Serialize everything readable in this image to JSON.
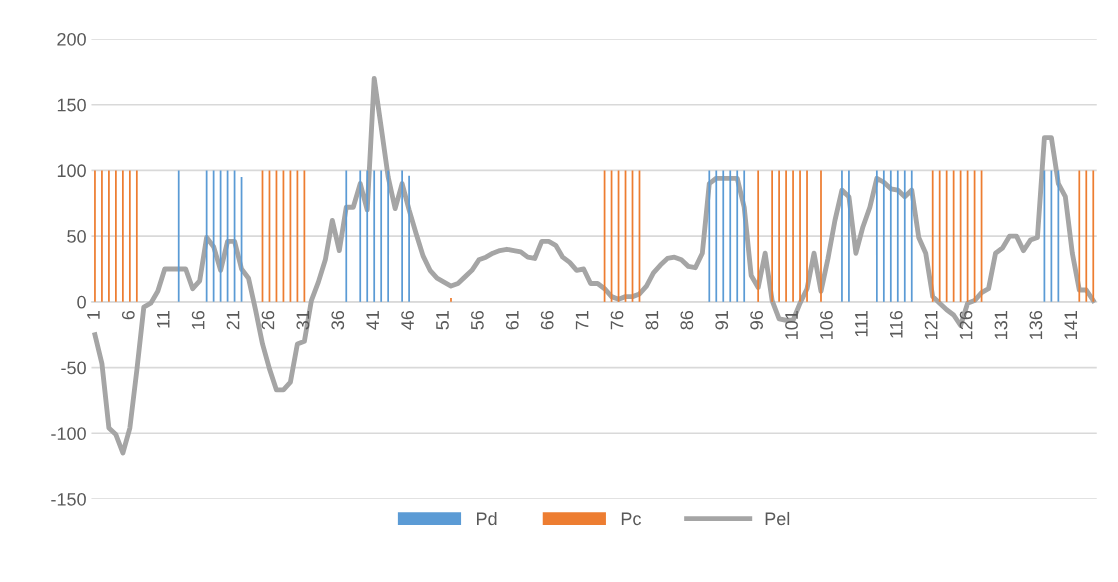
{
  "chart_data": {
    "type": "bar",
    "categories": [
      "1",
      null,
      null,
      null,
      null,
      "6",
      null,
      null,
      null,
      null,
      "11",
      null,
      null,
      null,
      null,
      "16",
      null,
      null,
      null,
      null,
      "21",
      null,
      null,
      null,
      null,
      "26",
      null,
      null,
      null,
      null,
      "31",
      null,
      null,
      null,
      null,
      "36",
      null,
      null,
      null,
      null,
      "41",
      null,
      null,
      null,
      null,
      "46",
      null,
      null,
      null,
      null,
      "51",
      null,
      null,
      null,
      null,
      "56",
      null,
      null,
      null,
      null,
      "61",
      null,
      null,
      null,
      null,
      "66",
      null,
      null,
      null,
      null,
      "71",
      null,
      null,
      null,
      null,
      "76",
      null,
      null,
      null,
      null,
      "81",
      null,
      null,
      null,
      null,
      "86",
      null,
      null,
      null,
      null,
      "91",
      null,
      null,
      null,
      null,
      "96",
      null,
      null,
      null,
      null,
      "101",
      null,
      null,
      null,
      null,
      "106",
      null,
      null,
      null,
      null,
      "111",
      null,
      null,
      null,
      null,
      "116",
      null,
      null,
      null,
      null,
      "121",
      null,
      null,
      null,
      null,
      "126",
      null,
      null,
      null,
      null,
      "131",
      null,
      null,
      null,
      null,
      "136",
      null,
      null,
      null,
      null,
      "141",
      null,
      null,
      null
    ],
    "series": [
      {
        "name": "Pd",
        "color": "#5b9bd5",
        "values": [
          0,
          0,
          0,
          0,
          0,
          0,
          0,
          0,
          0,
          0,
          0,
          0,
          100,
          0,
          0,
          0,
          100,
          100,
          100,
          100,
          100,
          95,
          0,
          0,
          0,
          0,
          0,
          0,
          0,
          0,
          0,
          0,
          0,
          0,
          0,
          0,
          100,
          0,
          100,
          100,
          100,
          100,
          100,
          0,
          100,
          96,
          0,
          0,
          0,
          0,
          0,
          0,
          0,
          0,
          0,
          0,
          0,
          0,
          0,
          0,
          0,
          0,
          0,
          0,
          0,
          0,
          0,
          0,
          0,
          0,
          0,
          0,
          0,
          0,
          0,
          0,
          0,
          0,
          0,
          0,
          0,
          0,
          0,
          0,
          0,
          0,
          0,
          0,
          100,
          100,
          100,
          100,
          100,
          100,
          0,
          0,
          0,
          0,
          0,
          0,
          0,
          0,
          0,
          0,
          0,
          0,
          0,
          100,
          100,
          0,
          0,
          0,
          100,
          100,
          100,
          100,
          100,
          100,
          0,
          0,
          0,
          0,
          0,
          0,
          0,
          0,
          0,
          0,
          0,
          0,
          0,
          0,
          0,
          0,
          0,
          0,
          100,
          100,
          100,
          0,
          0,
          0,
          0,
          0
        ]
      },
      {
        "name": "Pc",
        "color": "#ed7d31",
        "values": [
          100,
          100,
          100,
          100,
          100,
          100,
          100,
          0,
          0,
          0,
          0,
          0,
          0,
          0,
          0,
          0,
          0,
          0,
          0,
          0,
          0,
          0,
          0,
          0,
          100,
          100,
          100,
          100,
          100,
          100,
          100,
          0,
          0,
          0,
          0,
          0,
          0,
          0,
          0,
          0,
          0,
          0,
          0,
          0,
          0,
          0,
          0,
          0,
          0,
          0,
          0,
          3,
          0,
          0,
          0,
          0,
          0,
          0,
          0,
          0,
          0,
          0,
          0,
          0,
          0,
          0,
          0,
          0,
          0,
          0,
          0,
          0,
          0,
          100,
          100,
          100,
          100,
          100,
          100,
          0,
          0,
          0,
          0,
          0,
          0,
          0,
          0,
          0,
          0,
          0,
          0,
          0,
          0,
          0,
          0,
          100,
          0,
          100,
          100,
          100,
          100,
          100,
          100,
          0,
          100,
          0,
          0,
          0,
          0,
          0,
          0,
          0,
          0,
          0,
          0,
          0,
          0,
          0,
          0,
          0,
          100,
          100,
          100,
          100,
          100,
          100,
          100,
          100,
          0,
          0,
          0,
          0,
          0,
          0,
          0,
          0,
          0,
          0,
          0,
          0,
          0,
          100,
          100,
          100
        ]
      },
      {
        "name": "Pel",
        "type": "line",
        "color": "#a5a5a5",
        "values": [
          -25,
          -47,
          -96,
          -101,
          -115,
          -96,
          -52,
          -4,
          -1,
          8,
          25,
          25,
          25,
          25,
          10,
          16,
          49,
          42,
          24,
          46,
          46,
          25,
          18,
          -6,
          -32,
          -51,
          -67,
          -67,
          -61,
          -32,
          -30,
          1,
          15,
          32,
          62,
          39,
          72,
          72,
          90,
          70,
          170,
          133,
          95,
          71,
          90,
          70,
          52,
          35,
          24,
          18,
          15,
          12,
          14,
          19,
          24,
          32,
          34,
          37,
          39,
          40,
          39,
          38,
          34,
          33,
          46,
          46,
          43,
          34,
          30,
          24,
          25,
          14,
          14,
          10,
          4,
          2,
          4,
          4,
          6,
          12,
          22,
          28,
          33,
          34,
          32,
          27,
          26,
          37,
          90,
          94,
          94,
          94,
          94,
          72,
          20,
          11,
          37,
          1,
          -13,
          -14,
          -14,
          -1,
          10,
          37,
          8,
          33,
          62,
          85,
          80,
          37,
          57,
          72,
          94,
          91,
          86,
          85,
          80,
          85,
          49,
          37,
          4,
          -1,
          -6,
          -10,
          -18,
          -1,
          1,
          7,
          10,
          37,
          41,
          50,
          50,
          39,
          47,
          49,
          125,
          125,
          90,
          80,
          37,
          9,
          9,
          1
        ]
      }
    ],
    "ylim": [
      -150,
      200
    ],
    "yticks": [
      -150,
      -100,
      -50,
      0,
      50,
      100,
      150,
      200
    ],
    "grid": "y",
    "legend": "bottom"
  }
}
